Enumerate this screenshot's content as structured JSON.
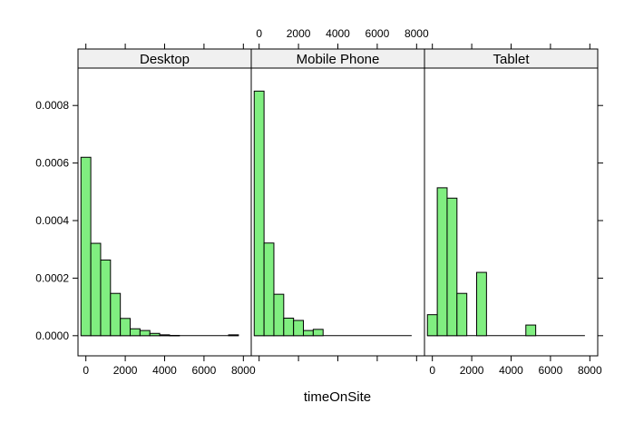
{
  "chart_data": {
    "type": "bar",
    "layout": "trellis-histogram",
    "xlabel": "timeOnSite",
    "ylabel": "",
    "bin_width": 500,
    "xlim": [
      -400,
      8400
    ],
    "ylim": [
      -7e-05,
      0.00093
    ],
    "x_ticks": [
      0,
      2000,
      4000,
      6000,
      8000
    ],
    "y_ticks": [
      0.0,
      0.0002,
      0.0004,
      0.0006,
      0.0008
    ],
    "x_tick_labels": [
      "0",
      "2000",
      "4000",
      "6000",
      "8000"
    ],
    "y_tick_labels": [
      "0.0000",
      "0.0002",
      "0.0004",
      "0.0006",
      "0.0008"
    ],
    "bar_color": "#80ee80",
    "strip_color": "#f0f0f0",
    "panels": [
      {
        "name": "Desktop",
        "bins": [
          {
            "start": -250,
            "end": 250,
            "value": 0.00062
          },
          {
            "start": 250,
            "end": 750,
            "value": 0.000321
          },
          {
            "start": 750,
            "end": 1250,
            "value": 0.000263
          },
          {
            "start": 1250,
            "end": 1750,
            "value": 0.000147
          },
          {
            "start": 1750,
            "end": 2250,
            "value": 6e-05
          },
          {
            "start": 2250,
            "end": 2750,
            "value": 2.4e-05
          },
          {
            "start": 2750,
            "end": 3250,
            "value": 1.8e-05
          },
          {
            "start": 3250,
            "end": 3750,
            "value": 8e-06
          },
          {
            "start": 3750,
            "end": 4250,
            "value": 3e-06
          },
          {
            "start": 4250,
            "end": 4750,
            "value": 1e-06
          },
          {
            "start": 4750,
            "end": 5250,
            "value": 0
          },
          {
            "start": 5250,
            "end": 5750,
            "value": 0
          },
          {
            "start": 5750,
            "end": 6250,
            "value": 0
          },
          {
            "start": 6250,
            "end": 6750,
            "value": 0
          },
          {
            "start": 6750,
            "end": 7250,
            "value": 0
          },
          {
            "start": 7250,
            "end": 7750,
            "value": 3e-06
          }
        ]
      },
      {
        "name": "Mobile Phone",
        "bins": [
          {
            "start": -250,
            "end": 250,
            "value": 0.00085
          },
          {
            "start": 250,
            "end": 750,
            "value": 0.000322
          },
          {
            "start": 750,
            "end": 1250,
            "value": 0.000144
          },
          {
            "start": 1250,
            "end": 1750,
            "value": 6.1e-05
          },
          {
            "start": 1750,
            "end": 2250,
            "value": 5.3e-05
          },
          {
            "start": 2250,
            "end": 2750,
            "value": 1.8e-05
          },
          {
            "start": 2750,
            "end": 3250,
            "value": 2.2e-05
          },
          {
            "start": 3250,
            "end": 3750,
            "value": 0
          },
          {
            "start": 3750,
            "end": 4250,
            "value": 0
          },
          {
            "start": 4250,
            "end": 4750,
            "value": 0
          },
          {
            "start": 4750,
            "end": 5250,
            "value": 0
          },
          {
            "start": 5250,
            "end": 5750,
            "value": 0
          },
          {
            "start": 5750,
            "end": 6250,
            "value": 0
          },
          {
            "start": 6250,
            "end": 6750,
            "value": 0
          },
          {
            "start": 6750,
            "end": 7250,
            "value": 0
          },
          {
            "start": 7250,
            "end": 7750,
            "value": 0
          }
        ]
      },
      {
        "name": "Tablet",
        "bins": [
          {
            "start": -250,
            "end": 250,
            "value": 7.3e-05
          },
          {
            "start": 250,
            "end": 750,
            "value": 0.000514
          },
          {
            "start": 750,
            "end": 1250,
            "value": 0.000478
          },
          {
            "start": 1250,
            "end": 1750,
            "value": 0.000147
          },
          {
            "start": 1750,
            "end": 2250,
            "value": 0
          },
          {
            "start": 2250,
            "end": 2750,
            "value": 0.00022
          },
          {
            "start": 2750,
            "end": 3250,
            "value": 0
          },
          {
            "start": 3250,
            "end": 3750,
            "value": 0
          },
          {
            "start": 3750,
            "end": 4250,
            "value": 0
          },
          {
            "start": 4250,
            "end": 4750,
            "value": 0
          },
          {
            "start": 4750,
            "end": 5250,
            "value": 3.7e-05
          },
          {
            "start": 5250,
            "end": 5750,
            "value": 0
          },
          {
            "start": 5750,
            "end": 6250,
            "value": 0
          },
          {
            "start": 6250,
            "end": 6750,
            "value": 0
          },
          {
            "start": 6750,
            "end": 7250,
            "value": 0
          },
          {
            "start": 7250,
            "end": 7750,
            "value": 0
          }
        ]
      }
    ],
    "x_axis_positions": [
      "bottom",
      "top",
      "bottom"
    ]
  }
}
